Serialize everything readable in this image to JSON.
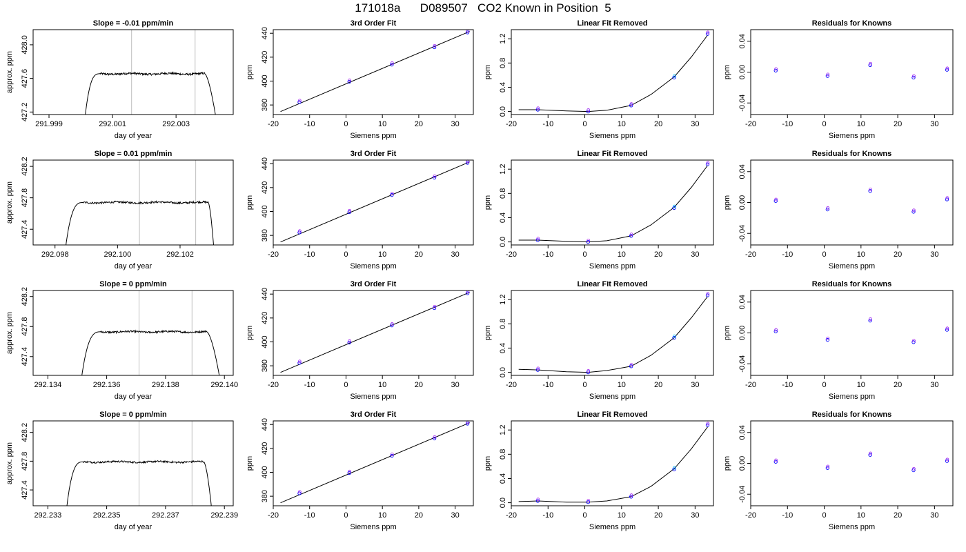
{
  "figure": {
    "title": "171018a      D089507   CO2 Known in Position  5"
  },
  "chart_data": [
    {
      "type": "line",
      "row": 0,
      "col": 0,
      "title": "Slope =  -0.01  ppm/min",
      "xlabel": "day of year",
      "ylabel": "approx. ppm",
      "xlim": [
        291.9985,
        292.0048
      ],
      "ylim": [
        427.17,
        428.18
      ],
      "xticks": [
        291.999,
        292.001,
        292.003
      ],
      "xtick_labels": [
        "291.999",
        "292.001",
        "292.003"
      ],
      "yticks": [
        427.2,
        427.6,
        428.0
      ],
      "ytick_labels": [
        "427.2",
        "427.6",
        "428.0"
      ],
      "vlines": [
        292.0016,
        292.0036
      ],
      "shape": {
        "rise_start": 292.0001,
        "rise_end": 292.0006,
        "fall_start": 292.0039,
        "fall_end": 292.0043,
        "plateau": 427.655,
        "noise": 0.012
      }
    },
    {
      "type": "line",
      "row": 0,
      "col": 1,
      "title": "3rd Order Fit",
      "xlabel": "Siemens ppm",
      "ylabel": "ppm",
      "xlim": [
        -20,
        35
      ],
      "ylim": [
        372,
        443
      ],
      "xticks": [
        -20,
        -10,
        0,
        10,
        20,
        30
      ],
      "xtick_labels": [
        "-20",
        "-10",
        "0",
        "10",
        "20",
        "30"
      ],
      "yticks": [
        380,
        400,
        420,
        440
      ],
      "ytick_labels": [
        "380",
        "400",
        "420",
        "440"
      ],
      "fit_line": {
        "x": [
          -18,
          34
        ],
        "y": [
          374.5,
          441.5
        ]
      },
      "points": [
        {
          "x": -12.8,
          "y": 382.4
        },
        {
          "x": 0.9,
          "y": 399.4
        },
        {
          "x": 12.6,
          "y": 413.8
        },
        {
          "x": 24.3,
          "y": 428.3
        },
        {
          "x": 33.4,
          "y": 440.7
        }
      ]
    },
    {
      "type": "line",
      "row": 0,
      "col": 2,
      "title": "Linear Fit Removed",
      "xlabel": "Siemens ppm",
      "ylabel": "ppm",
      "xlim": [
        -20,
        35
      ],
      "ylim": [
        -0.05,
        1.35
      ],
      "xticks": [
        -20,
        -10,
        0,
        10,
        20,
        30
      ],
      "xtick_labels": [
        "-20",
        "-10",
        "0",
        "10",
        "20",
        "30"
      ],
      "yticks": [
        0.0,
        0.4,
        0.8,
        1.2
      ],
      "ytick_labels": [
        "0.0",
        "0.4",
        "0.8",
        "1.2"
      ],
      "curve": {
        "x": [
          -18,
          -12.8,
          -5,
          0.9,
          6,
          12.6,
          18,
          24.3,
          29,
          33.4
        ],
        "y": [
          0.03,
          0.03,
          0.01,
          0.0,
          0.02,
          0.1,
          0.28,
          0.57,
          0.9,
          1.26
        ]
      },
      "points": [
        {
          "x": -12.8,
          "y": 0.03
        },
        {
          "x": 0.9,
          "y": 0.0
        },
        {
          "x": 12.6,
          "y": 0.1
        },
        {
          "x": 24.3,
          "y": 0.56
        },
        {
          "x": 33.4,
          "y": 1.28
        }
      ]
    },
    {
      "type": "scatter",
      "row": 0,
      "col": 3,
      "title": "Residuals for Knowns",
      "xlabel": "Siemens ppm",
      "ylabel": "ppm",
      "xlim": [
        -20,
        35
      ],
      "ylim": [
        -0.055,
        0.055
      ],
      "xticks": [
        -20,
        -10,
        0,
        10,
        20,
        30
      ],
      "xtick_labels": [
        "-20",
        "-10",
        "0",
        "10",
        "20",
        "30"
      ],
      "yticks": [
        -0.04,
        0.0,
        0.04
      ],
      "ytick_labels": [
        "-0.04",
        "0.00",
        "0.04"
      ],
      "points": [
        {
          "x": -13.2,
          "y": 0.002
        },
        {
          "x": 0.9,
          "y": -0.005
        },
        {
          "x": 12.5,
          "y": 0.009
        },
        {
          "x": 24.3,
          "y": -0.007
        },
        {
          "x": 33.4,
          "y": 0.003
        }
      ]
    },
    {
      "type": "line",
      "row": 1,
      "col": 0,
      "title": "Slope =  0.01  ppm/min",
      "xlabel": "day of year",
      "ylabel": "approx. ppm",
      "xlim": [
        292.0973,
        292.1037
      ],
      "ylim": [
        427.2,
        428.28
      ],
      "xticks": [
        292.098,
        292.1,
        292.102
      ],
      "xtick_labels": [
        "292.098",
        "292.100",
        "292.102"
      ],
      "yticks": [
        427.4,
        427.8,
        428.2
      ],
      "ytick_labels": [
        "427.4",
        "427.8",
        "428.2"
      ],
      "vlines": [
        292.1007,
        292.1025
      ],
      "shape": {
        "rise_start": 292.0983,
        "rise_end": 292.0989,
        "fall_start": 292.1029,
        "fall_end": 292.1031,
        "plateau": 427.74,
        "noise": 0.012
      }
    },
    {
      "type": "line",
      "row": 1,
      "col": 1,
      "title": "3rd Order Fit",
      "xlabel": "Siemens ppm",
      "ylabel": "ppm",
      "xlim": [
        -20,
        35
      ],
      "ylim": [
        372,
        443
      ],
      "xticks": [
        -20,
        -10,
        0,
        10,
        20,
        30
      ],
      "xtick_labels": [
        "-20",
        "-10",
        "0",
        "10",
        "20",
        "30"
      ],
      "yticks": [
        380,
        400,
        420,
        440
      ],
      "ytick_labels": [
        "380",
        "400",
        "420",
        "440"
      ],
      "fit_line": {
        "x": [
          -18,
          34
        ],
        "y": [
          374.5,
          441.5
        ]
      },
      "points": [
        {
          "x": -12.8,
          "y": 382.4
        },
        {
          "x": 0.9,
          "y": 399.4
        },
        {
          "x": 12.6,
          "y": 413.8
        },
        {
          "x": 24.3,
          "y": 428.3
        },
        {
          "x": 33.4,
          "y": 440.7
        }
      ]
    },
    {
      "type": "line",
      "row": 1,
      "col": 2,
      "title": "Linear Fit Removed",
      "xlabel": "Siemens ppm",
      "ylabel": "ppm",
      "xlim": [
        -20,
        35
      ],
      "ylim": [
        -0.05,
        1.35
      ],
      "xticks": [
        -20,
        -10,
        0,
        10,
        20,
        30
      ],
      "xtick_labels": [
        "-20",
        "-10",
        "0",
        "10",
        "20",
        "30"
      ],
      "yticks": [
        0.0,
        0.4,
        0.8,
        1.2
      ],
      "ytick_labels": [
        "0.0",
        "0.4",
        "0.8",
        "1.2"
      ],
      "curve": {
        "x": [
          -18,
          -12.8,
          -5,
          0.9,
          6,
          12.6,
          18,
          24.3,
          29,
          33.4
        ],
        "y": [
          0.03,
          0.03,
          0.01,
          0.0,
          0.02,
          0.1,
          0.28,
          0.57,
          0.9,
          1.26
        ]
      },
      "points": [
        {
          "x": -12.8,
          "y": 0.03
        },
        {
          "x": 0.9,
          "y": 0.0
        },
        {
          "x": 12.6,
          "y": 0.1
        },
        {
          "x": 24.3,
          "y": 0.56
        },
        {
          "x": 33.4,
          "y": 1.28
        }
      ]
    },
    {
      "type": "scatter",
      "row": 1,
      "col": 3,
      "title": "Residuals for Knowns",
      "xlabel": "Siemens ppm",
      "ylabel": "ppm",
      "xlim": [
        -20,
        35
      ],
      "ylim": [
        -0.055,
        0.055
      ],
      "xticks": [
        -20,
        -10,
        0,
        10,
        20,
        30
      ],
      "xtick_labels": [
        "-20",
        "-10",
        "0",
        "10",
        "20",
        "30"
      ],
      "yticks": [
        -0.04,
        0.0,
        0.04
      ],
      "ytick_labels": [
        "-0.04",
        "0.00",
        "0.04"
      ],
      "points": [
        {
          "x": -13.2,
          "y": 0.002
        },
        {
          "x": 0.9,
          "y": -0.009
        },
        {
          "x": 12.5,
          "y": 0.015
        },
        {
          "x": 24.3,
          "y": -0.012
        },
        {
          "x": 33.4,
          "y": 0.004
        }
      ]
    },
    {
      "type": "line",
      "row": 2,
      "col": 0,
      "title": "Slope =  0  ppm/min",
      "xlabel": "day of year",
      "ylabel": "approx. ppm",
      "xlim": [
        292.1335,
        292.1403
      ],
      "ylim": [
        427.15,
        428.28
      ],
      "xticks": [
        292.134,
        292.136,
        292.138,
        292.14
      ],
      "xtick_labels": [
        "292.134",
        "292.136",
        "292.138",
        "292.140"
      ],
      "yticks": [
        427.4,
        427.8,
        428.2
      ],
      "ytick_labels": [
        "427.4",
        "427.8",
        "428.2"
      ],
      "vlines": [
        292.1371,
        292.1389
      ],
      "shape": {
        "rise_start": 292.1351,
        "rise_end": 292.1358,
        "fall_start": 292.1394,
        "fall_end": 292.1399,
        "plateau": 427.73,
        "noise": 0.012
      }
    },
    {
      "type": "line",
      "row": 2,
      "col": 1,
      "title": "3rd Order Fit",
      "xlabel": "Siemens ppm",
      "ylabel": "ppm",
      "xlim": [
        -20,
        35
      ],
      "ylim": [
        372,
        443
      ],
      "xticks": [
        -20,
        -10,
        0,
        10,
        20,
        30
      ],
      "xtick_labels": [
        "-20",
        "-10",
        "0",
        "10",
        "20",
        "30"
      ],
      "yticks": [
        380,
        400,
        420,
        440
      ],
      "ytick_labels": [
        "380",
        "400",
        "420",
        "440"
      ],
      "fit_line": {
        "x": [
          -18,
          34
        ],
        "y": [
          374.5,
          441.5
        ]
      },
      "points": [
        {
          "x": -12.8,
          "y": 382.4
        },
        {
          "x": 0.9,
          "y": 399.4
        },
        {
          "x": 12.6,
          "y": 413.8
        },
        {
          "x": 24.3,
          "y": 428.3
        },
        {
          "x": 33.4,
          "y": 440.7
        }
      ]
    },
    {
      "type": "line",
      "row": 2,
      "col": 2,
      "title": "Linear Fit Removed",
      "xlabel": "Siemens ppm",
      "ylabel": "ppm",
      "xlim": [
        -20,
        35
      ],
      "ylim": [
        -0.05,
        1.35
      ],
      "xticks": [
        -20,
        -10,
        0,
        10,
        20,
        30
      ],
      "xtick_labels": [
        "-20",
        "-10",
        "0",
        "10",
        "20",
        "30"
      ],
      "yticks": [
        0.0,
        0.4,
        0.8,
        1.2
      ],
      "ytick_labels": [
        "0.0",
        "0.4",
        "0.8",
        "1.2"
      ],
      "curve": {
        "x": [
          -18,
          -12.8,
          -5,
          0.9,
          6,
          12.6,
          18,
          24.3,
          29,
          33.4
        ],
        "y": [
          0.05,
          0.04,
          0.01,
          0.0,
          0.03,
          0.1,
          0.28,
          0.57,
          0.9,
          1.25
        ]
      },
      "points": [
        {
          "x": -12.8,
          "y": 0.04
        },
        {
          "x": 0.9,
          "y": 0.0
        },
        {
          "x": 12.6,
          "y": 0.1
        },
        {
          "x": 24.3,
          "y": 0.57
        },
        {
          "x": 33.4,
          "y": 1.27
        }
      ]
    },
    {
      "type": "scatter",
      "row": 2,
      "col": 3,
      "title": "Residuals for Knowns",
      "xlabel": "Siemens ppm",
      "ylabel": "ppm",
      "xlim": [
        -20,
        35
      ],
      "ylim": [
        -0.055,
        0.055
      ],
      "xticks": [
        -20,
        -10,
        0,
        10,
        20,
        30
      ],
      "xtick_labels": [
        "-20",
        "-10",
        "0",
        "10",
        "20",
        "30"
      ],
      "yticks": [
        -0.04,
        0.0,
        0.04
      ],
      "ytick_labels": [
        "-0.04",
        "0.00",
        "0.04"
      ],
      "points": [
        {
          "x": -13.2,
          "y": 0.002
        },
        {
          "x": 0.9,
          "y": -0.009
        },
        {
          "x": 12.5,
          "y": 0.016
        },
        {
          "x": 24.3,
          "y": -0.012
        },
        {
          "x": 33.4,
          "y": 0.004
        }
      ]
    },
    {
      "type": "line",
      "row": 3,
      "col": 0,
      "title": "Slope =  0  ppm/min",
      "xlabel": "day of year",
      "ylabel": "approx. ppm",
      "xlim": [
        292.2325,
        292.2393
      ],
      "ylim": [
        427.18,
        428.36
      ],
      "xticks": [
        292.233,
        292.235,
        292.237,
        292.239
      ],
      "xtick_labels": [
        "292.233",
        "292.235",
        "292.237",
        "292.239"
      ],
      "yticks": [
        427.4,
        427.8,
        428.2
      ],
      "ytick_labels": [
        "427.4",
        "427.8",
        "428.2"
      ],
      "vlines": [
        292.2361,
        292.2379
      ],
      "shape": {
        "rise_start": 292.2336,
        "rise_end": 292.2342,
        "fall_start": 292.2383,
        "fall_end": 292.2386,
        "plateau": 427.79,
        "noise": 0.012
      }
    },
    {
      "type": "line",
      "row": 3,
      "col": 1,
      "title": "3rd Order Fit",
      "xlabel": "Siemens ppm",
      "ylabel": "ppm",
      "xlim": [
        -20,
        35
      ],
      "ylim": [
        372,
        443
      ],
      "xticks": [
        -20,
        -10,
        0,
        10,
        20,
        30
      ],
      "xtick_labels": [
        "-20",
        "-10",
        "0",
        "10",
        "20",
        "30"
      ],
      "yticks": [
        380,
        400,
        420,
        440
      ],
      "ytick_labels": [
        "380",
        "400",
        "420",
        "440"
      ],
      "fit_line": {
        "x": [
          -18,
          34
        ],
        "y": [
          374.5,
          441.5
        ]
      },
      "points": [
        {
          "x": -12.8,
          "y": 382.4
        },
        {
          "x": 0.9,
          "y": 399.4
        },
        {
          "x": 12.6,
          "y": 413.8
        },
        {
          "x": 24.3,
          "y": 428.3
        },
        {
          "x": 33.4,
          "y": 440.7
        }
      ]
    },
    {
      "type": "line",
      "row": 3,
      "col": 2,
      "title": "Linear Fit Removed",
      "xlabel": "Siemens ppm",
      "ylabel": "ppm",
      "xlim": [
        -20,
        35
      ],
      "ylim": [
        -0.05,
        1.35
      ],
      "xticks": [
        -20,
        -10,
        0,
        10,
        20,
        30
      ],
      "xtick_labels": [
        "-20",
        "-10",
        "0",
        "10",
        "20",
        "30"
      ],
      "yticks": [
        0.0,
        0.4,
        0.8,
        1.2
      ],
      "ytick_labels": [
        "0.0",
        "0.4",
        "0.8",
        "1.2"
      ],
      "curve": {
        "x": [
          -18,
          -12.8,
          -5,
          0.9,
          6,
          12.6,
          18,
          24.3,
          29,
          33.4
        ],
        "y": [
          0.02,
          0.03,
          0.01,
          0.01,
          0.03,
          0.1,
          0.27,
          0.56,
          0.89,
          1.25
        ]
      },
      "points": [
        {
          "x": -12.8,
          "y": 0.03
        },
        {
          "x": 0.9,
          "y": 0.01
        },
        {
          "x": 12.6,
          "y": 0.1
        },
        {
          "x": 24.3,
          "y": 0.55
        },
        {
          "x": 33.4,
          "y": 1.28
        }
      ]
    },
    {
      "type": "scatter",
      "row": 3,
      "col": 3,
      "title": "Residuals for Knowns",
      "xlabel": "Siemens ppm",
      "ylabel": "ppm",
      "xlim": [
        -20,
        35
      ],
      "ylim": [
        -0.055,
        0.055
      ],
      "xticks": [
        -20,
        -10,
        0,
        10,
        20,
        30
      ],
      "xtick_labels": [
        "-20",
        "-10",
        "0",
        "10",
        "20",
        "30"
      ],
      "yticks": [
        -0.04,
        0.0,
        0.04
      ],
      "ytick_labels": [
        "-0.04",
        "0.00",
        "0.04"
      ],
      "points": [
        {
          "x": -13.2,
          "y": 0.002
        },
        {
          "x": 0.9,
          "y": -0.006
        },
        {
          "x": 12.5,
          "y": 0.011
        },
        {
          "x": 24.3,
          "y": -0.009
        },
        {
          "x": 33.4,
          "y": 0.003
        }
      ]
    }
  ],
  "colors": {
    "axis": "#000000",
    "vline": "#bebebe",
    "point_primary": "#0000ff",
    "point_secondary": "#a020f0",
    "point_tertiary": "#00bfff"
  }
}
